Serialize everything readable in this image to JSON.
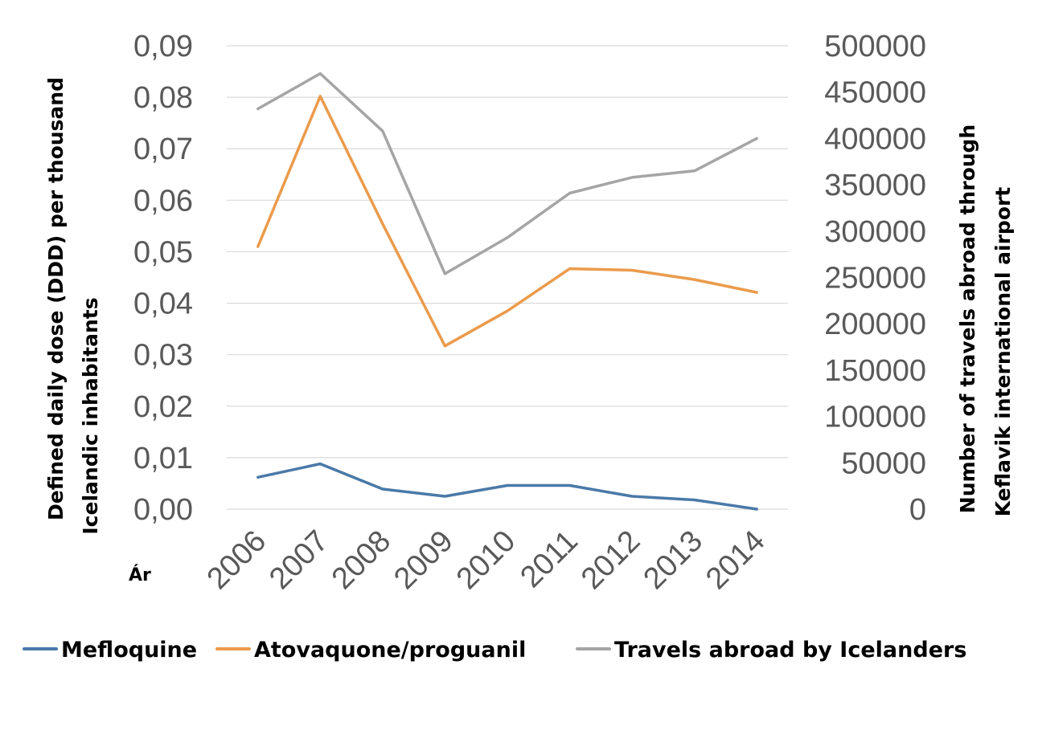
{
  "chart_data": {
    "type": "line",
    "x": [
      "2006",
      "2007",
      "2008",
      "2009",
      "2010",
      "2011",
      "2012",
      "2013",
      "2014"
    ],
    "xlabel": "Ár",
    "ylabel_left": [
      "Defined daily dose (DDD) per thousand",
      "Icelandic inhabitants"
    ],
    "ylabel_right": [
      "Number of travels abroad through",
      "Keflavik international airport"
    ],
    "ylim_left": [
      0,
      0.09
    ],
    "ylim_right": [
      0,
      500000
    ],
    "yticks_left": [
      "0,00",
      "0,01",
      "0,02",
      "0,03",
      "0,04",
      "0,05",
      "0,06",
      "0,07",
      "0,08",
      "0,09"
    ],
    "yticks_right": [
      "0",
      "50000",
      "100000",
      "150000",
      "200000",
      "250000",
      "300000",
      "350000",
      "400000",
      "450000",
      "500000"
    ],
    "grid": true,
    "legend_position": "bottom",
    "series": [
      {
        "name": "Mefloquine",
        "axis": "left",
        "color": "#4a79a8",
        "values": [
          0.0062,
          0.0088,
          0.0039,
          0.0025,
          0.0046,
          0.0046,
          0.0025,
          0.0018,
          0.0
        ]
      },
      {
        "name": "Atovaquone/proguanil",
        "axis": "left",
        "color": "#eb9b4c",
        "values": [
          0.051,
          0.0802,
          0.0554,
          0.0317,
          0.0385,
          0.0467,
          0.0464,
          0.0446,
          0.0421
        ]
      },
      {
        "name": "Travels abroad by Icelanders",
        "axis": "right",
        "color": "#a5a5a5",
        "values": [
          432000,
          470000,
          408000,
          254000,
          293000,
          341000,
          358000,
          365000,
          400000
        ]
      }
    ]
  }
}
